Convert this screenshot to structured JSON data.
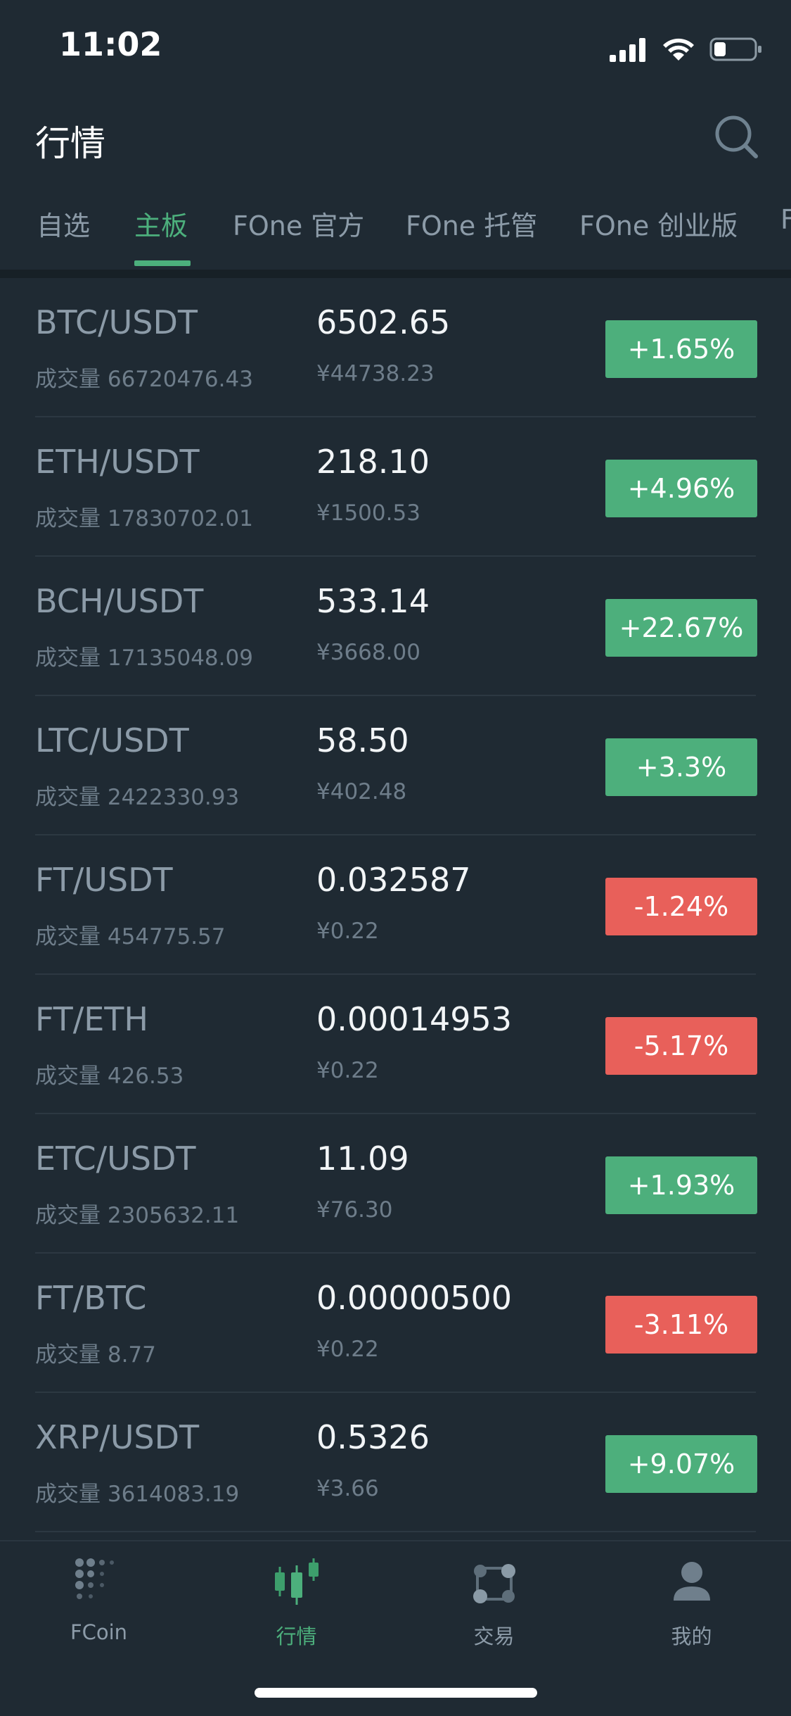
{
  "status_bar": {
    "time": "11:02"
  },
  "header": {
    "title": "行情"
  },
  "tabs": [
    {
      "label": "自选"
    },
    {
      "label": "主板"
    },
    {
      "label": "FOne 官方"
    },
    {
      "label": "FOne 托管"
    },
    {
      "label": "FOne 创业版"
    },
    {
      "label": "F"
    }
  ],
  "volume_label": "成交量",
  "markets": [
    {
      "pair": "BTC/USDT",
      "volume": "成交量 66720476.43",
      "price": "6502.65",
      "cny": "¥44738.23",
      "change": "+1.65%",
      "direction": "up"
    },
    {
      "pair": "ETH/USDT",
      "volume": "成交量 17830702.01",
      "price": "218.10",
      "cny": "¥1500.53",
      "change": "+4.96%",
      "direction": "up"
    },
    {
      "pair": "BCH/USDT",
      "volume": "成交量 17135048.09",
      "price": "533.14",
      "cny": "¥3668.00",
      "change": "+22.67%",
      "direction": "up"
    },
    {
      "pair": "LTC/USDT",
      "volume": "成交量 2422330.93",
      "price": "58.50",
      "cny": "¥402.48",
      "change": "+3.3%",
      "direction": "up"
    },
    {
      "pair": "FT/USDT",
      "volume": "成交量 454775.57",
      "price": "0.032587",
      "cny": "¥0.22",
      "change": "-1.24%",
      "direction": "down"
    },
    {
      "pair": "FT/ETH",
      "volume": "成交量 426.53",
      "price": "0.00014953",
      "cny": "¥0.22",
      "change": "-5.17%",
      "direction": "down"
    },
    {
      "pair": "ETC/USDT",
      "volume": "成交量 2305632.11",
      "price": "11.09",
      "cny": "¥76.30",
      "change": "+1.93%",
      "direction": "up"
    },
    {
      "pair": "FT/BTC",
      "volume": "成交量 8.77",
      "price": "0.00000500",
      "cny": "¥0.22",
      "change": "-3.11%",
      "direction": "down"
    },
    {
      "pair": "XRP/USDT",
      "volume": "成交量 3614083.19",
      "price": "0.5326",
      "cny": "¥3.66",
      "change": "+9.07%",
      "direction": "up"
    }
  ],
  "bottom_nav": [
    {
      "label": "FCoin",
      "icon": "fcoin-logo-icon"
    },
    {
      "label": "行情",
      "icon": "candlestick-icon"
    },
    {
      "label": "交易",
      "icon": "exchange-icon"
    },
    {
      "label": "我的",
      "icon": "user-icon"
    }
  ],
  "colors": {
    "background": "#1f2a33",
    "accent": "#4caf7c",
    "up": "#4daf7c",
    "down": "#e8605a"
  }
}
